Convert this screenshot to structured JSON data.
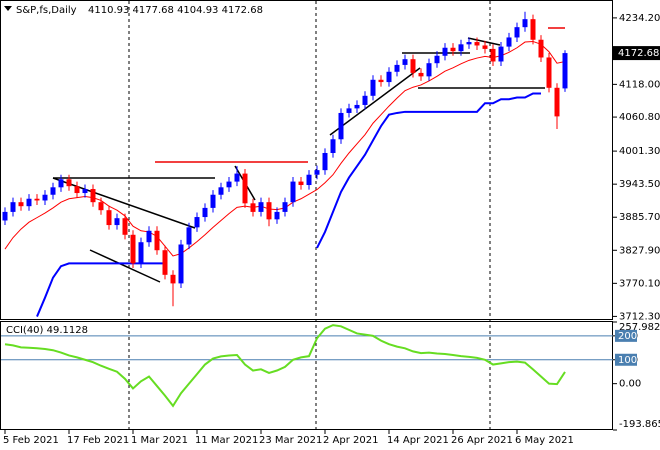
{
  "chart_data": {
    "type": "candlestick",
    "title": "S&P,fs,Daily",
    "header_values": "4110.93 4177.68 4104.93 4172.68",
    "categories": [
      "5 Feb 2021",
      null,
      null,
      null,
      null,
      null,
      null,
      null,
      "17 Feb 2021",
      null,
      null,
      null,
      null,
      null,
      null,
      null,
      "1 Mar 2021",
      null,
      null,
      null,
      null,
      null,
      null,
      null,
      "11 Mar 2021",
      null,
      null,
      null,
      null,
      null,
      null,
      null,
      "23 Mar 2021",
      null,
      null,
      null,
      null,
      null,
      null,
      null,
      "2 Apr 2021",
      null,
      null,
      null,
      null,
      null,
      null,
      null,
      "14 Apr 2021",
      null,
      null,
      null,
      null,
      null,
      null,
      null,
      "26 Apr 2021",
      null,
      null,
      null,
      null,
      null,
      null,
      null,
      "6 May 2021",
      null,
      null,
      null,
      null,
      null,
      null
    ],
    "open": [
      3880,
      3895,
      3912,
      3905,
      3918,
      3915,
      3925,
      3938,
      3952,
      3940,
      3928,
      3935,
      3912,
      3898,
      3872,
      3884,
      3855,
      3805,
      3842,
      3862,
      3828,
      3785,
      3770,
      3838,
      3868,
      3886,
      3902,
      3925,
      3938,
      3948,
      3962,
      3910,
      3895,
      3912,
      3882,
      3895,
      3912,
      3948,
      3942,
      3960,
      3968,
      3998,
      4022,
      4068,
      4076,
      4082,
      4098,
      4126,
      4122,
      4140,
      4152,
      4162,
      4138,
      4132,
      4155,
      4168,
      4182,
      4176,
      4188,
      4192,
      4186,
      4180,
      4158,
      4184,
      4200,
      4218,
      4232,
      4196,
      4165,
      4112,
      4110.93
    ],
    "high": [
      3903,
      3920,
      3920,
      3926,
      3926,
      3933,
      3946,
      3960,
      3960,
      3948,
      3943,
      3943,
      3920,
      3906,
      3892,
      3892,
      3863,
      3850,
      3870,
      3870,
      3836,
      3793,
      3846,
      3876,
      3894,
      3910,
      3933,
      3946,
      3956,
      3975,
      3970,
      3918,
      3920,
      3920,
      3903,
      3920,
      3956,
      3956,
      3968,
      3976,
      4006,
      4030,
      4076,
      4084,
      4090,
      4106,
      4134,
      4134,
      4148,
      4160,
      4170,
      4170,
      4146,
      4163,
      4176,
      4190,
      4190,
      4196,
      4200,
      4200,
      4194,
      4188,
      4192,
      4208,
      4226,
      4245,
      4240,
      4204,
      4173,
      4120,
      4177.68
    ],
    "low": [
      3872,
      3887,
      3897,
      3897,
      3907,
      3907,
      3917,
      3930,
      3932,
      3920,
      3920,
      3904,
      3890,
      3864,
      3864,
      3847,
      3797,
      3797,
      3834,
      3820,
      3777,
      3730,
      3762,
      3830,
      3860,
      3878,
      3894,
      3917,
      3930,
      3940,
      3902,
      3887,
      3887,
      3870,
      3874,
      3887,
      3904,
      3934,
      3934,
      3952,
      3960,
      3990,
      4014,
      4060,
      4068,
      4074,
      4090,
      4114,
      4114,
      4132,
      4144,
      4130,
      4124,
      4124,
      4147,
      4160,
      4168,
      4168,
      4180,
      4178,
      4172,
      4150,
      4150,
      4176,
      4192,
      4210,
      4188,
      4157,
      4104,
      4040,
      4104.93
    ],
    "close": [
      3895,
      3912,
      3905,
      3918,
      3915,
      3925,
      3938,
      3952,
      3940,
      3928,
      3935,
      3912,
      3898,
      3872,
      3884,
      3855,
      3805,
      3842,
      3862,
      3828,
      3785,
      3770,
      3838,
      3868,
      3886,
      3902,
      3925,
      3938,
      3948,
      3962,
      3910,
      3895,
      3912,
      3882,
      3895,
      3912,
      3948,
      3942,
      3960,
      3968,
      3998,
      4022,
      4068,
      4076,
      4082,
      4098,
      4126,
      4122,
      4140,
      4152,
      4162,
      4138,
      4132,
      4155,
      4168,
      4182,
      4176,
      4188,
      4192,
      4186,
      4180,
      4158,
      4184,
      4200,
      4218,
      4232,
      4196,
      4165,
      4112,
      4062,
      4172.68
    ],
    "up_color": "#0000ff",
    "down_color": "#ff0000",
    "series": [
      {
        "color": "#ff0000",
        "values": [
          3830,
          3850,
          3865,
          3877,
          3885,
          3893,
          3902,
          3912,
          3918,
          3920,
          3922,
          3920,
          3915,
          3905,
          3898,
          3888,
          3870,
          3862,
          3860,
          3852,
          3835,
          3818,
          3822,
          3832,
          3843,
          3855,
          3868,
          3880,
          3892,
          3903,
          3905,
          3903,
          3905,
          3900,
          3899,
          3902,
          3912,
          3918,
          3926,
          3934,
          3946,
          3960,
          3980,
          3998,
          4014,
          4030,
          4050,
          4065,
          4080,
          4094,
          4107,
          4113,
          4117,
          4124,
          4132,
          4141,
          4147,
          4154,
          4160,
          4164,
          4167,
          4165,
          4168,
          4174,
          4182,
          4192,
          4193,
          4188,
          4175,
          4155,
          4158
        ]
      },
      {
        "color": "#0000ff",
        "values": [
          null,
          null,
          null,
          null,
          3712,
          3745,
          3780,
          3800,
          3805,
          3805,
          3805,
          3805,
          3805,
          3805,
          3805,
          3805,
          3805,
          3805,
          3805,
          3805,
          3805,
          null,
          null,
          null,
          null,
          null,
          null,
          null,
          null,
          null,
          null,
          null,
          null,
          null,
          null,
          null,
          null,
          null,
          null,
          3832,
          3860,
          3895,
          3930,
          3955,
          3975,
          3995,
          4020,
          4045,
          4065,
          4068,
          4070,
          4070,
          4070,
          4070,
          4070,
          4070,
          4070,
          4070,
          4070,
          4070,
          4085,
          4085,
          4092,
          4092,
          4095,
          4095,
          4102,
          4102,
          null,
          null,
          null
        ]
      }
    ],
    "ylim": [
      3706,
      4262
    ],
    "yticks": [
      {
        "value": 3712.3,
        "label": "3712.30"
      },
      {
        "value": 3770.1,
        "label": "3770.10"
      },
      {
        "value": 3827.9,
        "label": "3827.90"
      },
      {
        "value": 3885.7,
        "label": "3885.70"
      },
      {
        "value": 3943.5,
        "label": "3943.50"
      },
      {
        "value": 4001.3,
        "label": "4001.30"
      },
      {
        "value": 4060.8,
        "label": "4060.80"
      },
      {
        "value": 4118,
        "label": "4118.00"
      },
      {
        "value": 4234.2,
        "label": "4234.20"
      }
    ],
    "last_price": 4172.68,
    "indicator": {
      "title": "CCI(40) 49.1128",
      "color": "#66dd22",
      "values": [
        165,
        160,
        152,
        150,
        148,
        145,
        140,
        130,
        118,
        110,
        100,
        90,
        75,
        62,
        50,
        20,
        -20,
        10,
        30,
        -10,
        -50,
        -93,
        -40,
        0,
        40,
        80,
        105,
        114,
        118,
        120,
        80,
        55,
        60,
        45,
        55,
        70,
        100,
        110,
        115,
        190,
        230,
        245,
        240,
        225,
        210,
        205,
        200,
        180,
        165,
        155,
        148,
        135,
        128,
        130,
        126,
        124,
        120,
        115,
        112,
        108,
        100,
        80,
        85,
        90,
        92,
        88,
        60,
        30,
        0,
        -2,
        49.1128
      ],
      "ylim": [
        -193.8653,
        257.9823
      ],
      "yticks": [
        -193.8653,
        {
          "value": 0,
          "label": "0.00"
        },
        100,
        200,
        257.9823
      ],
      "levels": [
        100,
        200
      ]
    }
  }
}
